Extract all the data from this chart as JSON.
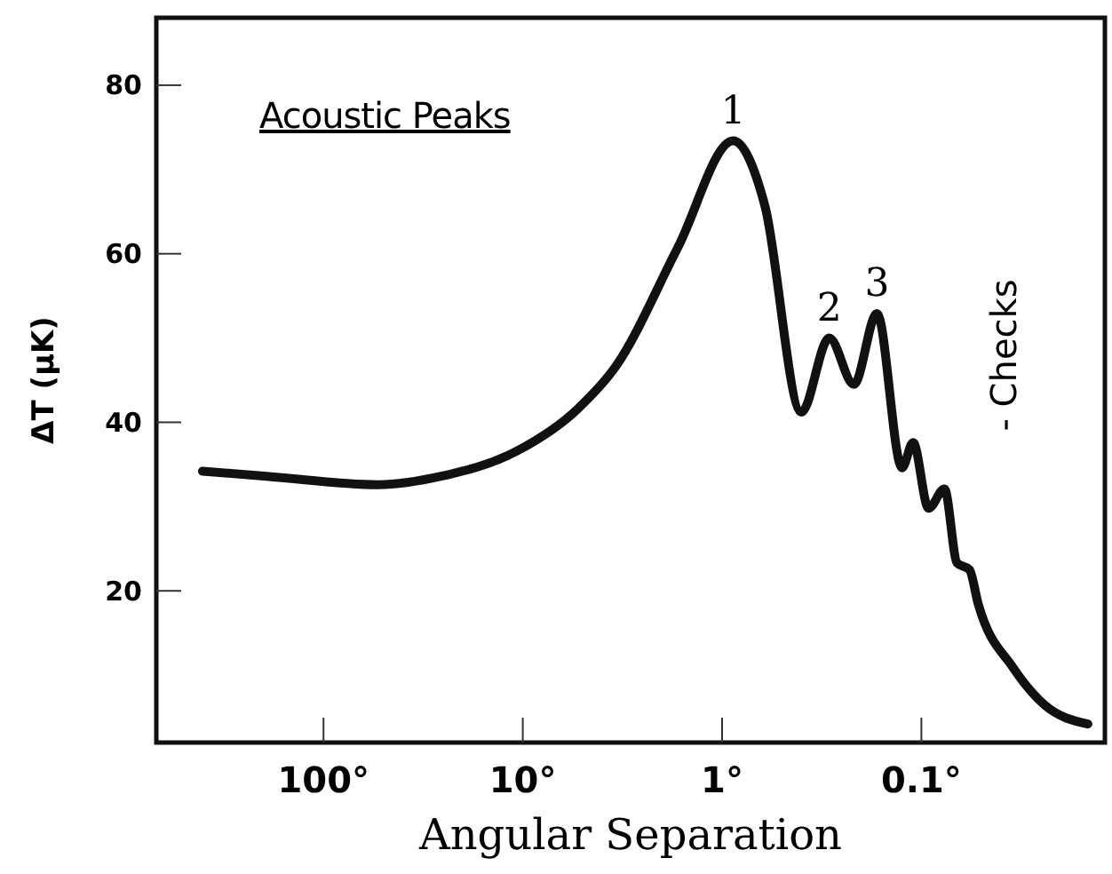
{
  "chart_data": {
    "type": "line",
    "xlabel": "Angular Separation",
    "ylabel": "ΔT (μK)",
    "xlim": [
      690,
      0.012
    ],
    "ylim": [
      2,
      88
    ],
    "log": "x",
    "xticks": [
      {
        "value": 100,
        "label": "100°"
      },
      {
        "value": 10,
        "label": "10°"
      },
      {
        "value": 1,
        "label": "1°"
      },
      {
        "value": 0.1,
        "label": "0.1°"
      }
    ],
    "yticks": [
      20,
      40,
      60,
      80
    ],
    "grid": false,
    "marker": "none",
    "line_style": "solid",
    "series": [
      {
        "color": "#111111",
        "x": [
          405,
          193,
          53,
          25.7,
          10.9,
          5.3,
          3.4,
          1.67,
          0.88,
          0.61,
          0.4,
          0.29,
          0.218,
          0.167,
          0.125,
          0.11,
          0.092,
          0.0766,
          0.0662,
          0.0574,
          0.0518,
          0.0347,
          0.0242,
          0.0146
        ],
        "values": [
          34.2,
          33.6,
          32.6,
          33.6,
          36.5,
          41.6,
          46.7,
          60.7,
          73.4,
          65.7,
          41.2,
          50,
          44.5,
          52.9,
          34.6,
          37.6,
          29.8,
          32.1,
          23.3,
          22.5,
          18.4,
          10.9,
          6.5,
          4.2
        ]
      }
    ],
    "annotations": [
      "Acoustic Peaks",
      "- Checks",
      {
        "text": "1",
        "x": 0.88,
        "y": 73.4
      },
      {
        "text": "2",
        "x": 0.29,
        "y": 50
      },
      {
        "text": "3",
        "x": 0.167,
        "y": 52.9
      }
    ]
  }
}
